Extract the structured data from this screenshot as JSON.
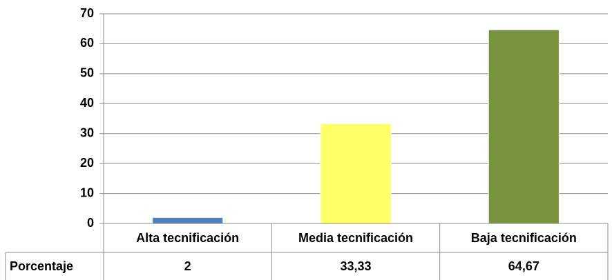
{
  "chart_data": {
    "type": "bar",
    "categories": [
      "Alta tecnificación",
      "Media tecnificación",
      "Baja tecnificación"
    ],
    "series": [
      {
        "name": "Porcentaje",
        "values": [
          2,
          33.33,
          64.67
        ],
        "value_labels": [
          "2",
          "33,33",
          "64,67"
        ],
        "colors": [
          "#4f81bd",
          "#ffff66",
          "#77933c"
        ]
      }
    ],
    "ylim": [
      0,
      70
    ],
    "yticks": [
      0,
      10,
      20,
      30,
      40,
      50,
      60,
      70
    ],
    "grid": true
  }
}
